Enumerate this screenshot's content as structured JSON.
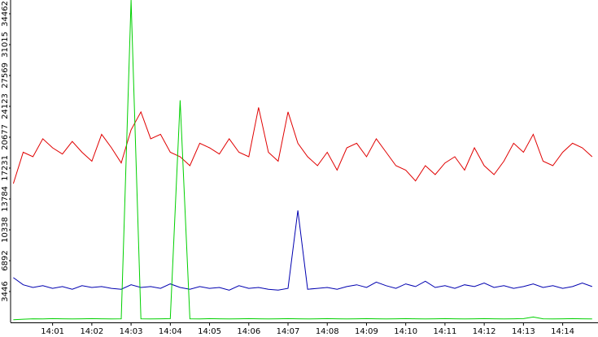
{
  "chart_data": {
    "type": "line",
    "x": [
      0,
      0.25,
      0.5,
      0.75,
      1,
      1.25,
      1.5,
      1.75,
      2,
      2.25,
      2.5,
      2.75,
      3,
      3.25,
      3.5,
      3.75,
      4,
      4.25,
      4.5,
      4.75,
      5,
      5.25,
      5.5,
      5.75,
      6,
      6.25,
      6.5,
      6.75,
      7,
      7.25,
      7.5,
      7.75,
      8,
      8.25,
      8.5,
      8.75,
      9,
      9.25,
      9.5,
      9.75,
      10,
      10.25,
      10.5,
      10.75,
      11,
      11.25,
      11.5,
      11.75,
      12,
      12.25,
      12.5,
      12.75,
      13,
      13.25,
      13.5,
      13.75,
      14,
      14.25,
      14.5,
      14.75
    ],
    "series": [
      {
        "color": "#e00000",
        "values": [
          15500,
          19000,
          18500,
          20500,
          19500,
          18800,
          20200,
          19000,
          18000,
          21000,
          19500,
          17800,
          21500,
          23500,
          20500,
          21000,
          19000,
          18500,
          17500,
          20000,
          19500,
          18800,
          20500,
          19000,
          18500,
          24000,
          19000,
          18000,
          23500,
          20000,
          18500,
          17500,
          19000,
          17000,
          19500,
          20000,
          18500,
          20500,
          19000,
          17500,
          17000,
          15800,
          17500,
          16500,
          17800,
          18500,
          17000,
          19500,
          17500,
          16500,
          18000,
          20000,
          19000,
          21000,
          18000,
          17500,
          19000,
          20000,
          19500,
          18500
        ]
      },
      {
        "color": "#0000b0",
        "values": [
          5000,
          4200,
          3900,
          4100,
          3800,
          4000,
          3700,
          4100,
          3900,
          4000,
          3800,
          3700,
          4200,
          3900,
          4000,
          3800,
          4300,
          3900,
          3700,
          4000,
          3800,
          3900,
          3600,
          4100,
          3800,
          3900,
          3700,
          3600,
          3800,
          12500,
          3700,
          3800,
          3900,
          3700,
          4000,
          4200,
          3900,
          4500,
          4100,
          3800,
          4300,
          4000,
          4600,
          3900,
          4100,
          3800,
          4200,
          4000,
          4400,
          3900,
          4100,
          3800,
          4000,
          4300,
          3900,
          4100,
          3800,
          4000,
          4400,
          4000
        ]
      },
      {
        "color": "#00d000",
        "values": [
          300,
          350,
          400,
          380,
          420,
          400,
          380,
          400,
          420,
          400,
          380,
          400,
          36000,
          400,
          380,
          400,
          420,
          24800,
          400,
          380,
          420,
          400,
          380,
          400,
          420,
          400,
          380,
          400,
          420,
          400,
          380,
          400,
          420,
          400,
          380,
          400,
          420,
          400,
          380,
          400,
          420,
          400,
          380,
          400,
          420,
          400,
          380,
          400,
          420,
          400,
          380,
          400,
          420,
          600,
          400,
          380,
          400,
          420,
          400,
          380
        ]
      }
    ],
    "xlim": [
      -0.05,
      14.9
    ],
    "xticks": [
      {
        "value": 1,
        "label": "14:01"
      },
      {
        "value": 2,
        "label": "14:02"
      },
      {
        "value": 3,
        "label": "14:03"
      },
      {
        "value": 4,
        "label": "14:04"
      },
      {
        "value": 5,
        "label": "14:05"
      },
      {
        "value": 6,
        "label": "14:06"
      },
      {
        "value": 7,
        "label": "14:07"
      },
      {
        "value": 8,
        "label": "14:08"
      },
      {
        "value": 9,
        "label": "14:09"
      },
      {
        "value": 10,
        "label": "14:10"
      },
      {
        "value": 11,
        "label": "14:11"
      },
      {
        "value": 12,
        "label": "14:12"
      },
      {
        "value": 13,
        "label": "14:13"
      },
      {
        "value": 14,
        "label": "14:14"
      }
    ],
    "ylim": [
      0,
      36000
    ],
    "yticks": [
      3446,
      6892,
      10338,
      13784,
      17231,
      20677,
      24123,
      27569,
      31015,
      34462
    ]
  }
}
